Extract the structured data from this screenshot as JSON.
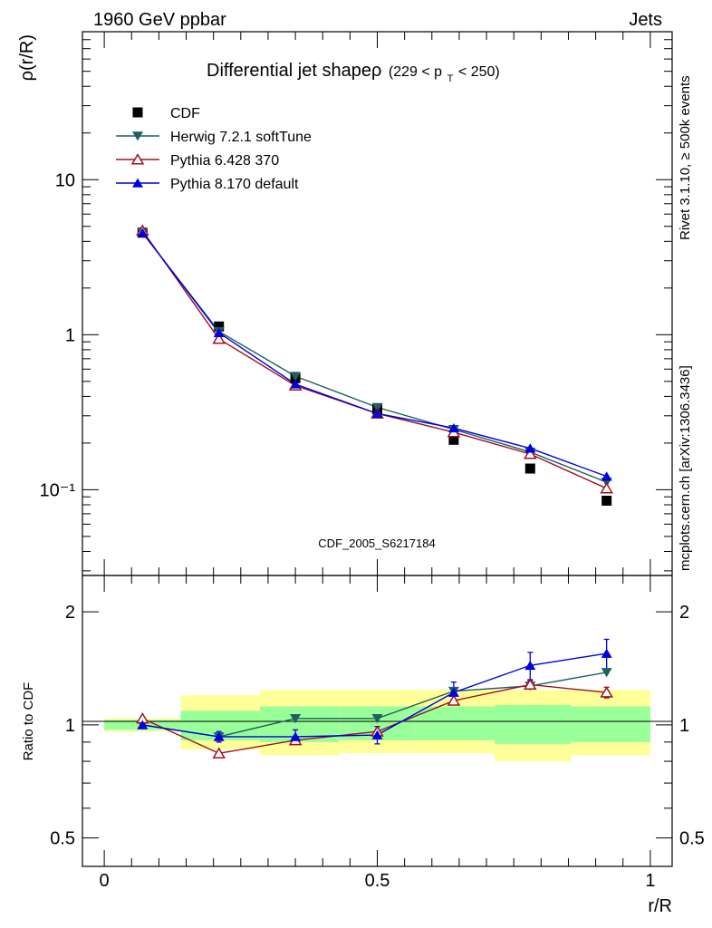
{
  "header": {
    "left": "1960 GeV ppbar",
    "right": "Jets"
  },
  "side_text": {
    "rivet": "Rivet 3.1.10, ≥ 500k events",
    "mcplots": "mcplots.cern.ch [arXiv:1306.3436]"
  },
  "watermark": "CDF_2005_S6217184",
  "colors": {
    "CDF": "#000000",
    "Herwig": "#1f5f5f",
    "Pythia6": "#a01020",
    "Pythia8": "#0000e0",
    "band_inner": "#99ff99",
    "band_outer": "#ffff99"
  },
  "chart_data": [
    {
      "type": "line",
      "panel": "main",
      "title": "Differential jet shapeρ",
      "title_suffix": "(229 < p",
      "title_sub": "T",
      "title_end": " < 250)",
      "ylabel": "ρ(r/R)",
      "xlabel": "",
      "yscale": "log",
      "ylim": [
        0.028,
        90
      ],
      "xlim": [
        -0.04,
        1.04
      ],
      "ytick_labels": [
        "10⁻¹",
        "1",
        "10"
      ],
      "ytick_values": [
        0.1,
        1,
        10
      ],
      "x": [
        0.07,
        0.21,
        0.35,
        0.5,
        0.64,
        0.78,
        0.92
      ],
      "series": [
        {
          "name": "CDF",
          "key": "CDF",
          "marker": "square",
          "values": [
            4.55,
            1.13,
            0.525,
            0.33,
            0.21,
            0.137,
            0.085
          ]
        },
        {
          "name": "Herwig 7.2.1 softTune",
          "key": "Herwig",
          "marker": "triangle-down",
          "values": [
            4.55,
            1.05,
            0.54,
            0.34,
            0.245,
            0.175,
            0.112
          ]
        },
        {
          "name": "Pythia 6.428 370",
          "key": "Pythia6",
          "marker": "triangle-open",
          "values": [
            4.7,
            0.94,
            0.47,
            0.31,
            0.235,
            0.17,
            0.102
          ]
        },
        {
          "name": "Pythia 8.170 default",
          "key": "Pythia8",
          "marker": "triangle-up",
          "values": [
            4.55,
            1.03,
            0.48,
            0.31,
            0.25,
            0.185,
            0.122
          ]
        }
      ],
      "legend_placement": "top-left",
      "grid": false
    },
    {
      "type": "line",
      "panel": "ratio",
      "ylabel": "Ratio to CDF",
      "xlabel": "r/R",
      "yscale": "log",
      "ylim": [
        0.42,
        2.5
      ],
      "xlim": [
        -0.04,
        1.04
      ],
      "ytick_labels": [
        "0.5",
        "1",
        "2"
      ],
      "ytick_values": [
        0.5,
        1,
        2
      ],
      "xtick_labels": [
        "0",
        "0.5",
        "1"
      ],
      "xtick_values": [
        0,
        0.5,
        1
      ],
      "bin_edges": [
        0,
        0.14,
        0.285,
        0.43,
        0.57,
        0.715,
        0.855,
        1.0
      ],
      "band_inner": [
        [
          0.97,
          1.03
        ],
        [
          0.91,
          1.09
        ],
        [
          0.9,
          1.12
        ],
        [
          0.91,
          1.12
        ],
        [
          0.91,
          1.12
        ],
        [
          0.89,
          1.13
        ],
        [
          0.9,
          1.12
        ]
      ],
      "band_outer": [
        [
          0.96,
          1.04
        ],
        [
          0.86,
          1.2
        ],
        [
          0.83,
          1.24
        ],
        [
          0.84,
          1.24
        ],
        [
          0.84,
          1.24
        ],
        [
          0.8,
          1.24
        ],
        [
          0.83,
          1.24
        ]
      ],
      "x": [
        0.07,
        0.21,
        0.35,
        0.5,
        0.64,
        0.78,
        0.92
      ],
      "series": [
        {
          "name": "Herwig 7.2.1 softTune",
          "key": "Herwig",
          "marker": "triangle-down",
          "values": [
            1.0,
            0.93,
            1.04,
            1.04,
            1.23,
            1.27,
            1.38
          ],
          "errors": [
            0,
            0,
            0,
            0,
            0,
            0,
            0
          ]
        },
        {
          "name": "Pythia 6.428 370",
          "key": "Pythia6",
          "marker": "triangle-open",
          "values": [
            1.04,
            0.84,
            0.91,
            0.96,
            1.16,
            1.28,
            1.22
          ],
          "errors": [
            0,
            0,
            0,
            0,
            0,
            0.03,
            0.04
          ]
        },
        {
          "name": "Pythia 8.170 default",
          "key": "Pythia8",
          "marker": "triangle-up",
          "values": [
            1.0,
            0.93,
            0.93,
            0.94,
            1.22,
            1.44,
            1.55
          ],
          "errors": [
            0.02,
            0.03,
            0.04,
            0.05,
            0.08,
            0.12,
            0.14
          ]
        }
      ]
    }
  ]
}
